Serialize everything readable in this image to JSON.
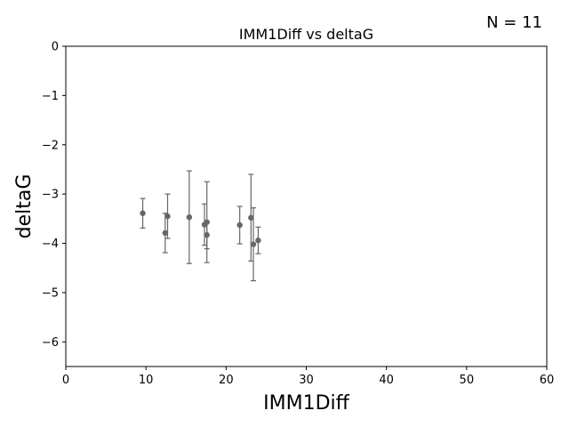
{
  "chart_data": {
    "type": "scatter",
    "title": "IMM1Diff vs deltaG",
    "annotation": "N = 11",
    "xlabel": "IMM1Diff",
    "ylabel": "deltaG",
    "xlim": [
      0,
      60
    ],
    "ylim": [
      -6.5,
      0
    ],
    "xticks": [
      0,
      10,
      20,
      30,
      40,
      50,
      60
    ],
    "yticks": [
      0,
      -1,
      -2,
      -3,
      -4,
      -5,
      -6
    ],
    "xtick_labels": [
      "0",
      "10",
      "20",
      "30",
      "40",
      "50",
      "60"
    ],
    "ytick_labels": [
      "0",
      "−1",
      "−2",
      "−3",
      "−4",
      "−5",
      "−6"
    ],
    "grid": false,
    "marker_color": "#666666",
    "points": [
      {
        "x": 9.6,
        "y": -3.39,
        "err": 0.3
      },
      {
        "x": 12.4,
        "y": -3.79,
        "err": 0.4
      },
      {
        "x": 12.7,
        "y": -3.45,
        "err": 0.45
      },
      {
        "x": 15.4,
        "y": -3.47,
        "err": 0.94
      },
      {
        "x": 17.3,
        "y": -3.62,
        "err": 0.42
      },
      {
        "x": 17.6,
        "y": -3.57,
        "err": 0.82
      },
      {
        "x": 17.6,
        "y": -3.83,
        "err": 0.28
      },
      {
        "x": 21.7,
        "y": -3.63,
        "err": 0.38
      },
      {
        "x": 23.1,
        "y": -3.48,
        "err": 0.88
      },
      {
        "x": 23.4,
        "y": -4.02,
        "err": 0.74
      },
      {
        "x": 24.0,
        "y": -3.94,
        "err": 0.27
      }
    ]
  }
}
